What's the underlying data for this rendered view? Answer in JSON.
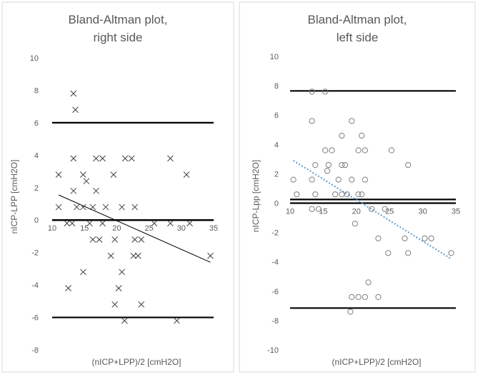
{
  "chart_data": [
    {
      "type": "scatter",
      "title": [
        "Bland-Altman plot,",
        "right side"
      ],
      "xlabel": "(nICP+LPP)/2 [cmH2O]",
      "ylabel": "nICP-LPP [cmH2O]",
      "xlim": [
        10,
        35
      ],
      "ylim": [
        -8,
        10
      ],
      "xticks": [
        10,
        15,
        20,
        25,
        30,
        35
      ],
      "yticks": [
        -8,
        -6,
        -4,
        -2,
        0,
        2,
        4,
        6,
        8,
        10
      ],
      "marker": "x",
      "points": [
        [
          11,
          2.8
        ],
        [
          11,
          0.8
        ],
        [
          12.3,
          -0.2
        ],
        [
          12.5,
          -4.2
        ],
        [
          13.3,
          7.8
        ],
        [
          13.6,
          6.8
        ],
        [
          13.3,
          3.8
        ],
        [
          13.3,
          1.8
        ],
        [
          13.1,
          -0.2
        ],
        [
          13.8,
          0.8
        ],
        [
          14.8,
          2.8
        ],
        [
          14.8,
          0.8
        ],
        [
          14.8,
          -3.2
        ],
        [
          15.3,
          2.4
        ],
        [
          15.8,
          -0.2
        ],
        [
          16.3,
          0.8
        ],
        [
          16.3,
          -1.2
        ],
        [
          16.8,
          3.8
        ],
        [
          16.8,
          1.8
        ],
        [
          17.3,
          -1.2
        ],
        [
          17.8,
          3.8
        ],
        [
          17.8,
          -0.2
        ],
        [
          18.3,
          0.8
        ],
        [
          19.1,
          -2.2
        ],
        [
          19.5,
          2.8
        ],
        [
          19.7,
          -1.2
        ],
        [
          19.7,
          -5.2
        ],
        [
          20.3,
          -4.2
        ],
        [
          20.8,
          -3.2
        ],
        [
          20.8,
          0.8
        ],
        [
          21.3,
          3.8
        ],
        [
          21.2,
          -6.2
        ],
        [
          22.3,
          3.8
        ],
        [
          22.8,
          0.8
        ],
        [
          22.6,
          -2.2
        ],
        [
          22.8,
          -1.2
        ],
        [
          23.3,
          -2.2
        ],
        [
          23.8,
          -1.2
        ],
        [
          23.8,
          -5.2
        ],
        [
          25.8,
          -0.2
        ],
        [
          28.3,
          3.8
        ],
        [
          28.3,
          -0.2
        ],
        [
          29.3,
          -6.2
        ],
        [
          30.8,
          2.8
        ],
        [
          31.3,
          -0.2
        ],
        [
          34.5,
          -2.2
        ]
      ],
      "hlines": [
        6,
        0,
        -6
      ],
      "trendline": {
        "x": [
          11,
          34.5
        ],
        "y": [
          1.55,
          -2.6
        ],
        "style": "solid"
      }
    },
    {
      "type": "scatter",
      "title": [
        "Bland-Altman plot,",
        "left side"
      ],
      "xlabel": "(nICP+LPP)/2 [cmH2O]",
      "ylabel": "nICP-Lpp [cmH2O]",
      "xlim": [
        10,
        35
      ],
      "ylim": [
        -10,
        10
      ],
      "xticks": [
        10,
        15,
        20,
        25,
        30,
        35
      ],
      "yticks": [
        -10,
        -8,
        -6,
        -4,
        -2,
        0,
        2,
        4,
        6,
        8,
        10
      ],
      "marker": "o",
      "points": [
        [
          10.5,
          1.6
        ],
        [
          11,
          0.6
        ],
        [
          13.3,
          7.6
        ],
        [
          13.3,
          5.6
        ],
        [
          13.3,
          1.6
        ],
        [
          13.3,
          -0.4
        ],
        [
          13.8,
          2.6
        ],
        [
          13.8,
          0.6
        ],
        [
          14.3,
          -0.4
        ],
        [
          15.3,
          7.6
        ],
        [
          15.3,
          3.6
        ],
        [
          15.6,
          2.2
        ],
        [
          15.8,
          2.6
        ],
        [
          16.3,
          3.6
        ],
        [
          16.8,
          0.6
        ],
        [
          17.3,
          1.6
        ],
        [
          17.8,
          4.6
        ],
        [
          17.8,
          2.6
        ],
        [
          17.8,
          0.6
        ],
        [
          18.3,
          2.6
        ],
        [
          18.6,
          0.6
        ],
        [
          19.1,
          -7.4
        ],
        [
          19.3,
          5.6
        ],
        [
          19.3,
          1.6
        ],
        [
          19.3,
          -6.4
        ],
        [
          19.8,
          -1.4
        ],
        [
          20.3,
          3.6
        ],
        [
          20.3,
          0.6
        ],
        [
          20.3,
          -6.4
        ],
        [
          20.8,
          4.6
        ],
        [
          20.8,
          0.6
        ],
        [
          21.3,
          3.6
        ],
        [
          21.3,
          1.6
        ],
        [
          21.3,
          -6.4
        ],
        [
          21.8,
          -5.4
        ],
        [
          22.3,
          -0.4
        ],
        [
          23.3,
          -2.4
        ],
        [
          23.3,
          -6.4
        ],
        [
          24.3,
          -0.4
        ],
        [
          24.8,
          -3.4
        ],
        [
          25.3,
          3.6
        ],
        [
          27.3,
          -2.4
        ],
        [
          27.8,
          2.6
        ],
        [
          27.8,
          -3.4
        ],
        [
          30.3,
          -2.4
        ],
        [
          31.3,
          -2.4
        ],
        [
          34.3,
          -3.4
        ]
      ],
      "hlines": [
        7.65,
        0.25,
        -7.15
      ],
      "trendline": {
        "x": [
          10.5,
          34.3
        ],
        "y": [
          2.9,
          -3.8
        ],
        "style": "dotted",
        "color": "#5b9bd5"
      }
    }
  ]
}
